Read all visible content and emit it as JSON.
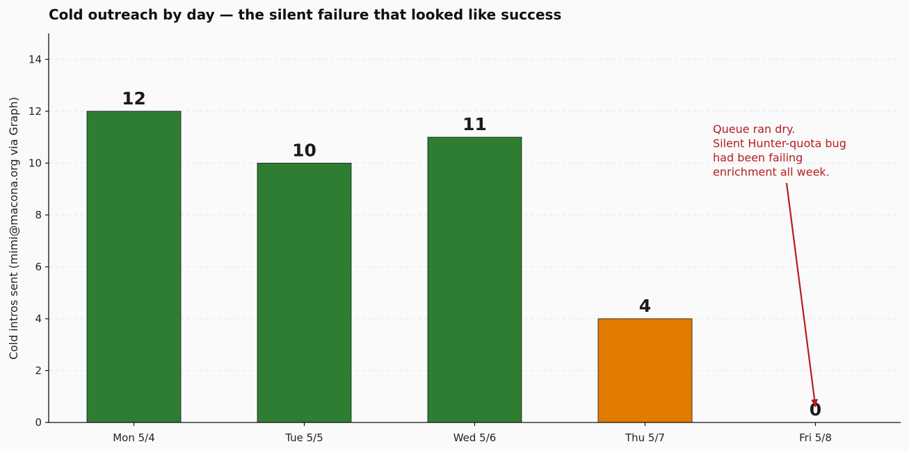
{
  "chart_data": {
    "type": "bar",
    "title": "Cold outreach by day — the silent failure that looked like success",
    "ylabel": "Cold intros sent (mimi@macona.org via Graph)",
    "xlabel": "",
    "categories": [
      "Mon 5/4",
      "Tue 5/5",
      "Wed 5/6",
      "Thu 5/7",
      "Fri 5/8"
    ],
    "values": [
      12,
      10,
      11,
      4,
      0
    ],
    "value_labels": [
      "12",
      "10",
      "11",
      "4",
      "0"
    ],
    "bar_colors": [
      "#2e7d32",
      "#2e7d32",
      "#2e7d32",
      "#e07b00",
      "#2e7d32"
    ],
    "ylim": [
      0,
      15
    ],
    "yticks": [
      0,
      2,
      4,
      6,
      8,
      10,
      12,
      14
    ],
    "grid": "horizontal dashed",
    "annotation": {
      "lines": [
        "Queue ran dry.",
        "Silent Hunter-quota bug",
        "had been failing",
        "enrichment all week."
      ],
      "target_category": "Fri 5/8",
      "target_value": 0.6,
      "color": "#b71c1c"
    }
  }
}
